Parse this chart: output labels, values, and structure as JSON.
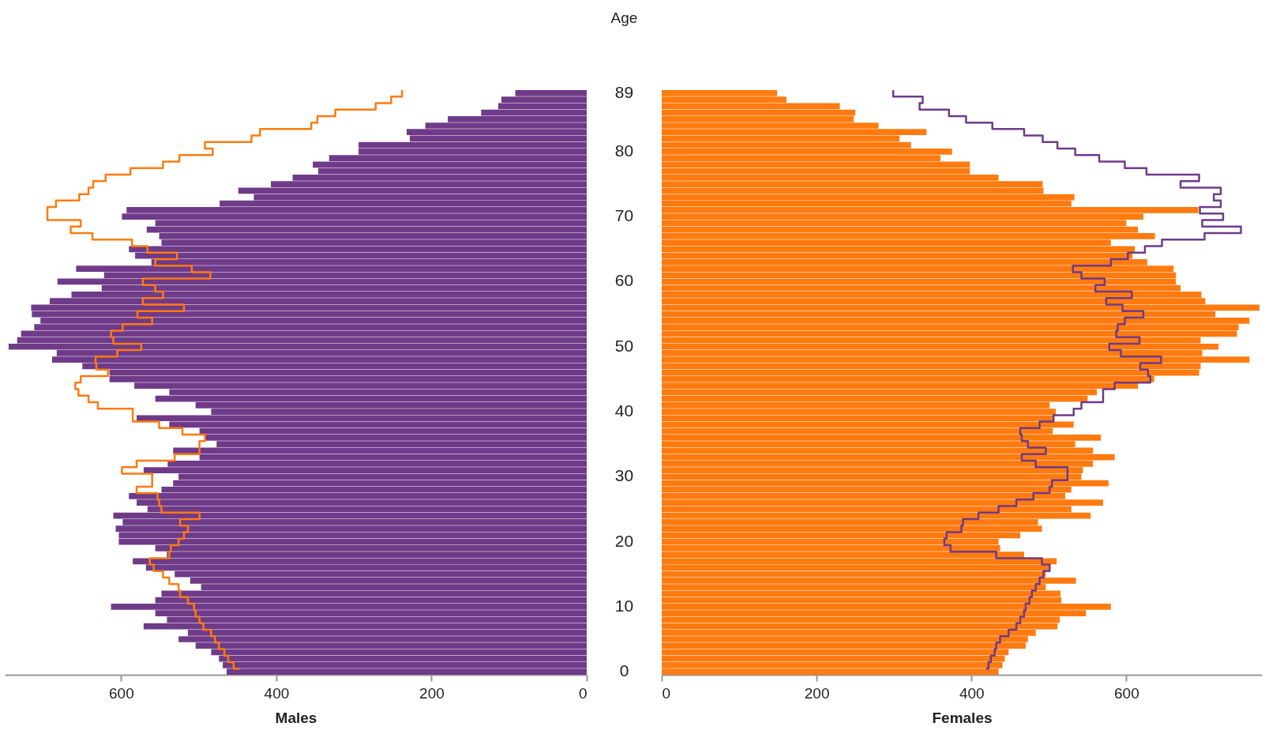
{
  "chart_data": [
    {
      "type": "bar",
      "orientation": "horizontal",
      "xlabel": "Males",
      "ylabel": "Age",
      "categories": [
        "89",
        null,
        null,
        null,
        null,
        null,
        null,
        null,
        null,
        "80",
        null,
        null,
        null,
        null,
        null,
        null,
        null,
        null,
        null,
        "70",
        null,
        null,
        null,
        null,
        null,
        null,
        null,
        null,
        null,
        "60",
        null,
        null,
        null,
        null,
        null,
        null,
        null,
        null,
        null,
        "50",
        null,
        null,
        null,
        null,
        null,
        null,
        null,
        null,
        null,
        "40",
        null,
        null,
        null,
        null,
        null,
        null,
        null,
        null,
        null,
        "30",
        null,
        null,
        null,
        null,
        null,
        null,
        null,
        null,
        null,
        "20",
        null,
        null,
        null,
        null,
        null,
        null,
        null,
        null,
        null,
        "10",
        null,
        null,
        null,
        null,
        null,
        null,
        null,
        null,
        null,
        "0"
      ],
      "series": [
        {
          "color": "#6f3b89",
          "values": [
            92,
            110,
            114,
            136,
            179,
            208,
            232,
            228,
            294,
            294,
            332,
            353,
            346,
            379,
            407,
            449,
            429,
            473,
            593,
            599,
            556,
            567,
            551,
            548,
            590,
            582,
            561,
            658,
            622,
            682,
            625,
            664,
            692,
            716,
            715,
            704,
            712,
            729,
            734,
            745,
            683,
            689,
            650,
            615,
            615,
            583,
            538,
            556,
            504,
            484,
            580,
            538,
            499,
            492,
            477,
            533,
            499,
            540,
            571,
            526,
            533,
            548,
            590,
            580,
            566,
            610,
            598,
            607,
            603,
            603,
            556,
            541,
            585,
            568,
            531,
            511,
            497,
            548,
            556,
            613,
            556,
            541,
            571,
            514,
            526,
            504,
            484,
            474,
            469,
            464
          ]
        },
        {
          "type": "step",
          "color": "#ff7b10",
          "values": [
            238,
            252,
            272,
            324,
            347,
            355,
            421,
            432,
            492,
            482,
            525,
            546,
            588,
            620,
            636,
            642,
            654,
            684,
            695,
            695,
            652,
            665,
            637,
            586,
            566,
            528,
            556,
            509,
            485,
            572,
            556,
            546,
            572,
            519,
            579,
            560,
            598,
            613,
            610,
            574,
            605,
            633,
            632,
            617,
            652,
            659,
            655,
            642,
            630,
            585,
            585,
            551,
            521,
            492,
            499,
            499,
            531,
            580,
            599,
            560,
            560,
            580,
            553,
            551,
            548,
            499,
            524,
            514,
            519,
            526,
            536,
            538,
            563,
            558,
            546,
            538,
            526,
            524,
            514,
            506,
            504,
            499,
            494,
            484,
            479,
            474,
            467,
            462,
            455,
            447
          ]
        }
      ],
      "xlim": [
        750,
        0
      ],
      "xticks": [
        600,
        400,
        200,
        0
      ],
      "grid": false
    },
    {
      "type": "bar",
      "orientation": "horizontal",
      "xlabel": "Females",
      "tick_labels": "x",
      "categories": [
        "89",
        null,
        null,
        null,
        null,
        null,
        null,
        null,
        null,
        "80",
        null,
        null,
        null,
        null,
        null,
        null,
        null,
        null,
        null,
        "70",
        null,
        null,
        null,
        null,
        null,
        null,
        null,
        null,
        null,
        "60",
        null,
        null,
        null,
        null,
        null,
        null,
        null,
        null,
        null,
        "50",
        null,
        null,
        null,
        null,
        null,
        null,
        null,
        null,
        null,
        "40",
        null,
        null,
        null,
        null,
        null,
        null,
        null,
        null,
        null,
        "30",
        null,
        null,
        null,
        null,
        null,
        null,
        null,
        null,
        null,
        "20",
        null,
        null,
        null,
        null,
        null,
        null,
        null,
        null,
        null,
        "10",
        null,
        null,
        null,
        null,
        null,
        null,
        null,
        null,
        null,
        "0"
      ],
      "series": [
        {
          "color": "#ff7b10",
          "values": [
            149,
            161,
            230,
            250,
            248,
            280,
            342,
            307,
            322,
            375,
            360,
            398,
            398,
            435,
            492,
            493,
            533,
            529,
            693,
            622,
            600,
            615,
            637,
            580,
            611,
            608,
            627,
            661,
            664,
            664,
            670,
            697,
            702,
            772,
            715,
            759,
            745,
            743,
            696,
            719,
            698,
            759,
            696,
            694,
            636,
            615,
            562,
            550,
            501,
            509,
            506,
            532,
            505,
            567,
            534,
            557,
            585,
            557,
            544,
            542,
            577,
            529,
            521,
            570,
            529,
            554,
            486,
            491,
            463,
            435,
            437,
            468,
            510,
            501,
            496,
            535,
            496,
            515,
            516,
            580,
            548,
            514,
            511,
            483,
            473,
            470,
            448,
            443,
            440,
            435
          ]
        },
        {
          "type": "step",
          "color": "#6f3b89",
          "values": [
            299,
            337,
            333,
            371,
            393,
            427,
            468,
            492,
            511,
            534,
            565,
            598,
            626,
            694,
            670,
            722,
            713,
            722,
            695,
            725,
            698,
            748,
            701,
            646,
            624,
            602,
            580,
            531,
            542,
            572,
            560,
            607,
            574,
            595,
            622,
            598,
            589,
            587,
            617,
            578,
            593,
            645,
            618,
            628,
            631,
            585,
            570,
            570,
            542,
            532,
            506,
            488,
            463,
            465,
            473,
            496,
            465,
            483,
            524,
            524,
            504,
            501,
            480,
            458,
            435,
            409,
            389,
            387,
            368,
            365,
            373,
            432,
            491,
            501,
            493,
            488,
            483,
            478,
            475,
            470,
            468,
            463,
            458,
            448,
            437,
            432,
            430,
            425,
            422,
            419
          ]
        }
      ],
      "xlim": [
        0,
        775
      ],
      "xticks": [
        0,
        200,
        400,
        600
      ],
      "grid": false
    }
  ]
}
